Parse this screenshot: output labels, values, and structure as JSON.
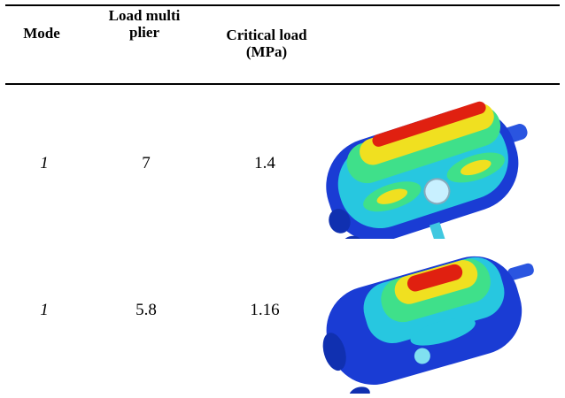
{
  "table": {
    "header": [
      "Mode",
      "Load multiplier",
      "Critical load (MPa)"
    ],
    "rows": [
      [
        "1",
        "7",
        "1.4"
      ],
      [
        "1",
        "5.8",
        "1.16"
      ]
    ]
  }
}
